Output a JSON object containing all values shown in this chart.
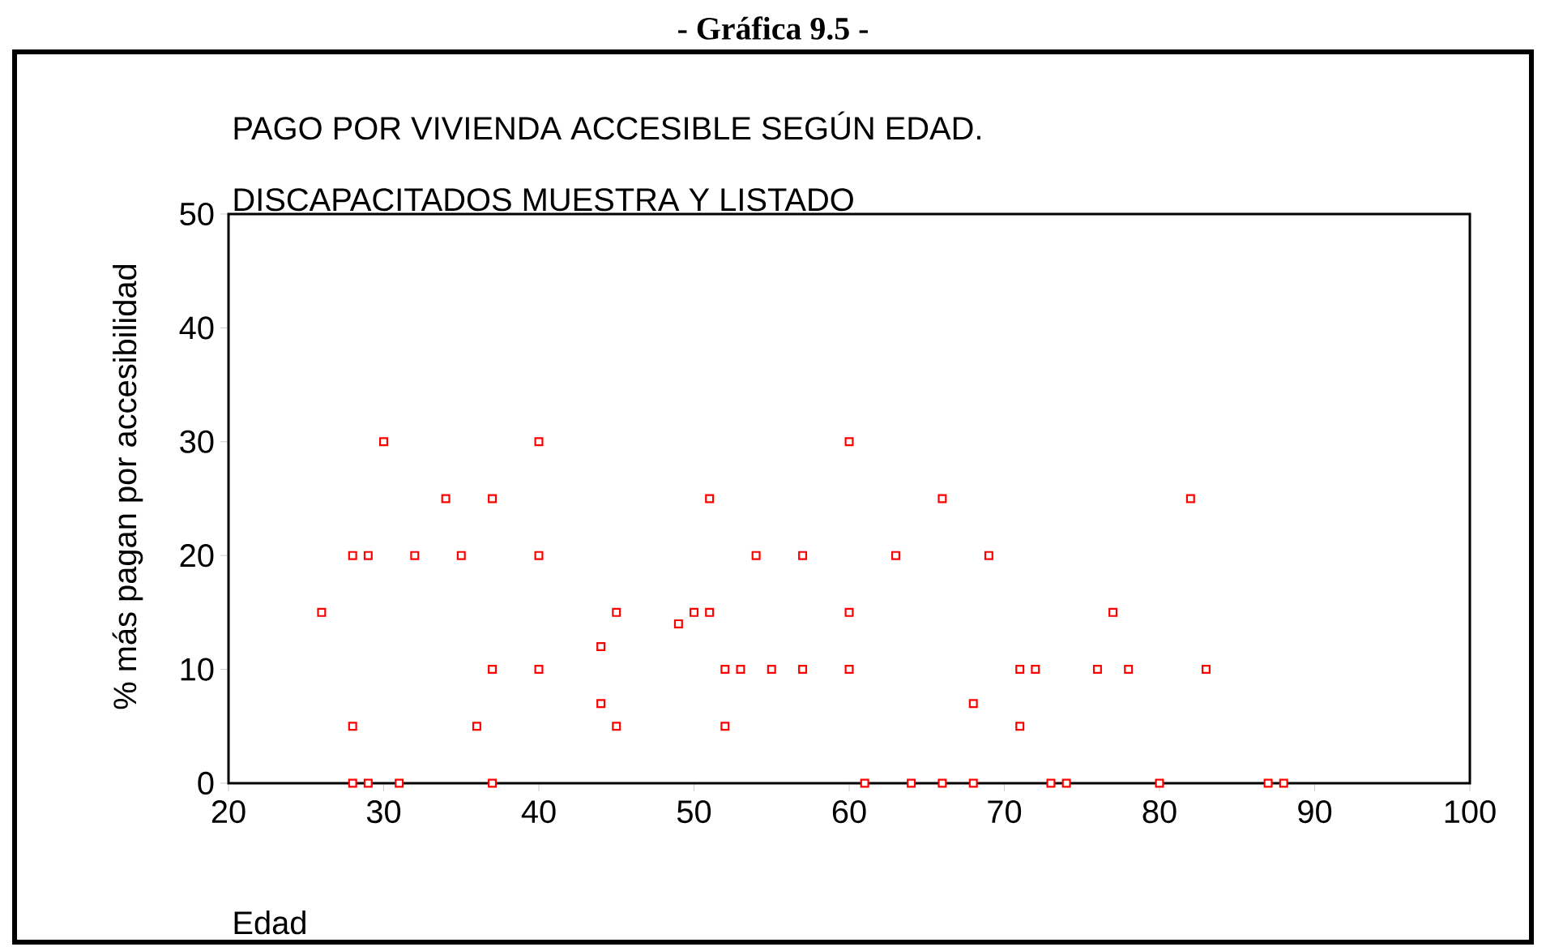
{
  "chart_data": {
    "type": "scatter",
    "title": "PAGO POR VIVIENDA ACCESIBLE SEGÚN EDAD.",
    "subtitle": "DISCAPACITADOS MUESTRA Y LISTADO",
    "xlabel": "Edad",
    "ylabel": "% más pagan por accesibilidad",
    "annotations": [
      "- Gráfica 9.5 -"
    ],
    "x": [
      26,
      28,
      28,
      28,
      29,
      29,
      30,
      31,
      32,
      34,
      35,
      36,
      37,
      37,
      37,
      40,
      40,
      40,
      44,
      44,
      45,
      45,
      49,
      50,
      51,
      51,
      52,
      52,
      53,
      54,
      55,
      57,
      57,
      60,
      60,
      60,
      61,
      63,
      64,
      66,
      66,
      68,
      68,
      69,
      71,
      71,
      72,
      73,
      74,
      76,
      77,
      78,
      80,
      82,
      83,
      87,
      88
    ],
    "values": [
      15,
      5,
      20,
      0,
      20,
      0,
      30,
      0,
      20,
      25,
      20,
      5,
      25,
      10,
      0,
      30,
      20,
      10,
      12,
      7,
      15,
      5,
      14,
      15,
      15,
      25,
      10,
      5,
      10,
      20,
      10,
      20,
      10,
      30,
      15,
      10,
      0,
      20,
      0,
      25,
      0,
      7,
      0,
      20,
      10,
      5,
      10,
      0,
      0,
      10,
      15,
      10,
      0,
      25,
      10,
      0,
      0
    ],
    "color": "#ff0000",
    "marker": "square",
    "xlim": [
      20,
      100
    ],
    "ylim": [
      0,
      50
    ],
    "xticks": [
      20,
      30,
      40,
      50,
      60,
      70,
      80,
      90,
      100
    ],
    "yticks": [
      0,
      10,
      20,
      30,
      40,
      50
    ]
  }
}
